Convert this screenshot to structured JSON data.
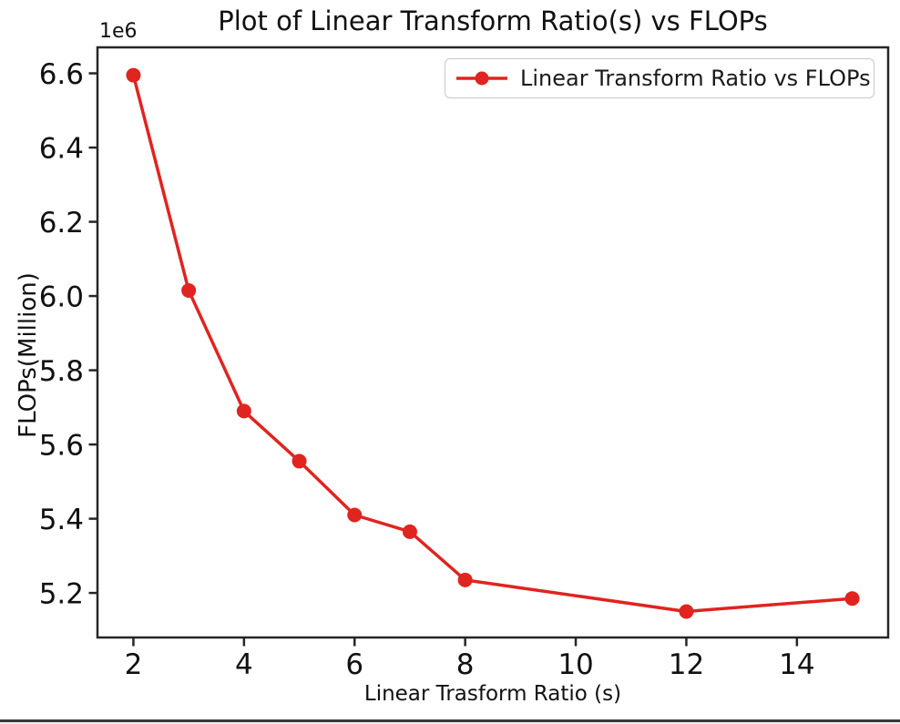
{
  "window": {
    "bottom_border_color": "#3a3a3a"
  },
  "chart_data": {
    "type": "line",
    "title": "Plot of Linear Transform Ratio(s) vs FLOPs",
    "xlabel": "Linear Trasform Ratio (s)",
    "ylabel": "FLOPs(Million)",
    "y_axis_offset_label": "1e6",
    "grid": false,
    "axis_color": "#262626",
    "text_color": "#111111",
    "xlim": [
      1.35,
      15.65
    ],
    "ylim_1e6": [
      5.08,
      6.67
    ],
    "xticks": [
      2,
      4,
      6,
      8,
      10,
      12,
      14
    ],
    "yticks_1e6": [
      5.2,
      5.4,
      5.6,
      5.8,
      6.0,
      6.2,
      6.4,
      6.6
    ],
    "legend": {
      "position": "upper right",
      "entries": [
        {
          "label": "Linear Transform Ratio vs FLOPs",
          "color": "#e02420",
          "marker": "circle"
        }
      ]
    },
    "series": [
      {
        "name": "Linear Transform Ratio vs FLOPs",
        "color": "#e02420",
        "marker": "circle",
        "line_width": 3.5,
        "marker_radius": 8,
        "points": [
          {
            "x": 2,
            "y_1e6": 6.595
          },
          {
            "x": 3,
            "y_1e6": 6.015
          },
          {
            "x": 4,
            "y_1e6": 5.69
          },
          {
            "x": 5,
            "y_1e6": 5.555
          },
          {
            "x": 6,
            "y_1e6": 5.41
          },
          {
            "x": 7,
            "y_1e6": 5.365
          },
          {
            "x": 8,
            "y_1e6": 5.235
          },
          {
            "x": 12,
            "y_1e6": 5.15
          },
          {
            "x": 15,
            "y_1e6": 5.185
          }
        ]
      }
    ]
  }
}
